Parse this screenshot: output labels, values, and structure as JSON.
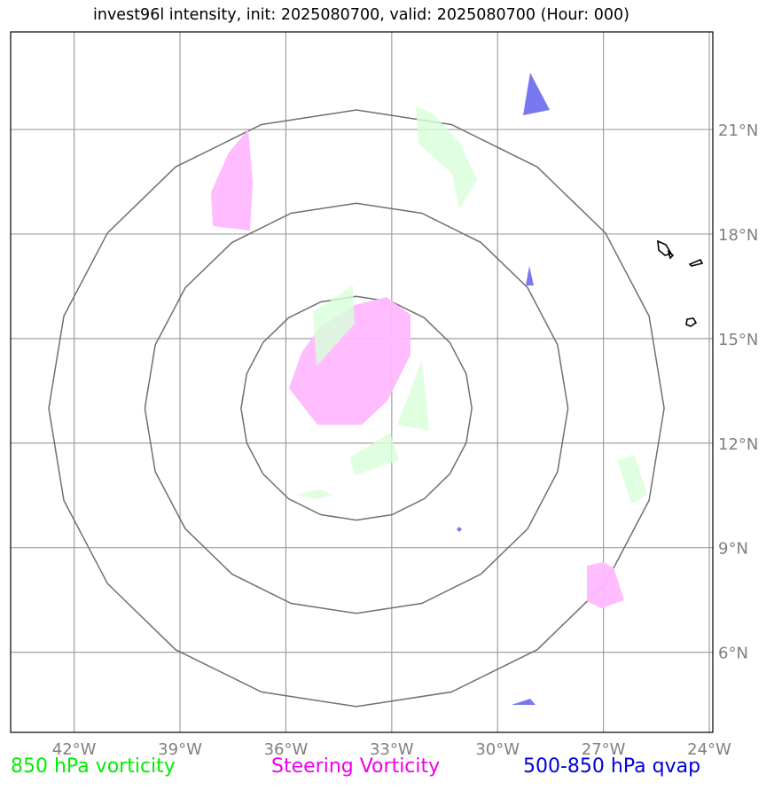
{
  "title": "invest96l intensity, init: 2025080700, valid: 2025080700 (Hour: 000)",
  "map": {
    "lat_ticks": [
      "21°N",
      "18°N",
      "15°N",
      "12°N",
      "9°N",
      "6°N"
    ],
    "lon_ticks": [
      "42°W",
      "39°W",
      "36°W",
      "33°W",
      "30°W",
      "27°W",
      "24°W"
    ],
    "lat_values": [
      21,
      18,
      15,
      12,
      9,
      6
    ],
    "lon_values": [
      -42,
      -39,
      -36,
      -33,
      -30,
      -27,
      -24
    ],
    "extent": {
      "lon_min": -43.8,
      "lon_max": -23.9,
      "lat_min": 3.7,
      "lat_max": 23.8
    },
    "center": {
      "lon": -34.0,
      "lat": 13.0
    },
    "range_ring_radii_deg": [
      3.0,
      5.5,
      8.0
    ],
    "colors": {
      "grid": "#a0a0a0",
      "ring": "#707070",
      "vorticity_850": "#d8ffd8",
      "steering_vorticity": "#ffb8ff",
      "qvap_500_850": "#7878f0",
      "coast": "#000000"
    }
  },
  "legend": {
    "vorticity": {
      "label": "850 hPa vorticity",
      "color": "#00ee00"
    },
    "steering": {
      "label": "Steering Vorticity",
      "color": "#ee00ee"
    },
    "qvap": {
      "label": "500-850 hPa qvap",
      "color": "#0000dd"
    }
  }
}
